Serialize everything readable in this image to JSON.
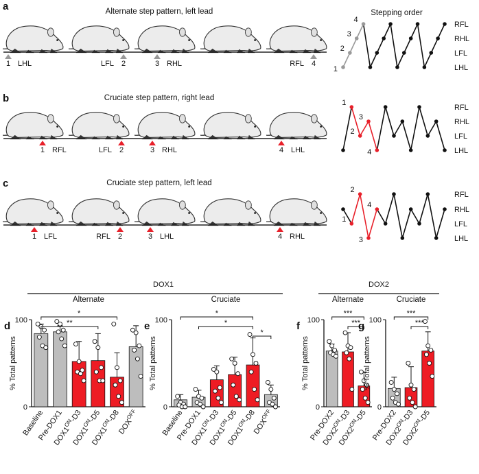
{
  "stepping_title": "Stepping order",
  "panels": [
    {
      "letter": "a",
      "title": "Alternate step pattern, left lead",
      "marker_color": "#999999",
      "markers": [
        {
          "number": "1",
          "limb": "LHL"
        },
        {
          "number": "2",
          "limb": "LFL"
        },
        {
          "number": "3",
          "limb": "RHL"
        },
        {
          "number": "4",
          "limb": "RFL"
        }
      ],
      "stepping": {
        "levels": [
          "RFL",
          "RHL",
          "LFL",
          "LHL"
        ],
        "sequence": [
          3,
          2,
          1,
          0,
          3,
          2,
          1,
          0,
          3,
          2,
          1,
          0,
          3,
          2,
          1,
          0
        ],
        "step_labels": [
          "1",
          "2",
          "3",
          "4",
          null,
          null,
          null,
          null,
          null,
          null,
          null,
          null,
          null,
          null,
          null,
          null
        ],
        "highlight_color": "#999999",
        "color": "#111111"
      }
    },
    {
      "letter": "b",
      "title": "Cruciate step pattern, right lead",
      "marker_color": "#e8202a",
      "markers": [
        {
          "number": "1",
          "limb": "RFL"
        },
        {
          "number": "2",
          "limb": "LFL"
        },
        {
          "number": "3",
          "limb": "RHL"
        },
        {
          "number": "4",
          "limb": "LHL"
        }
      ],
      "stepping": {
        "levels": [
          "RFL",
          "RHL",
          "LFL",
          "LHL"
        ],
        "sequence": [
          3,
          0,
          2,
          1,
          3,
          0,
          2,
          1,
          3,
          0,
          2,
          1,
          3
        ],
        "step_labels": [
          null,
          "1",
          "2",
          "3",
          "4",
          null,
          null,
          null,
          null,
          null,
          null,
          null,
          null
        ],
        "highlight_color": "#e8202a",
        "color": "#111111"
      }
    },
    {
      "letter": "c",
      "title": "Cruciate step pattern, left lead",
      "marker_color": "#e8202a",
      "markers": [
        {
          "number": "1",
          "limb": "LFL"
        },
        {
          "number": "2",
          "limb": "RFL"
        },
        {
          "number": "3",
          "limb": "LHL"
        },
        {
          "number": "4",
          "limb": "RHL"
        }
      ],
      "stepping": {
        "levels": [
          "RFL",
          "RHL",
          "LFL",
          "LHL"
        ],
        "sequence": [
          1,
          2,
          0,
          3,
          1,
          2,
          0,
          3,
          1,
          2,
          0,
          3,
          1
        ],
        "step_labels": [
          null,
          "1",
          "2",
          "3",
          "4",
          null,
          null,
          null,
          null,
          null,
          null,
          null,
          null
        ],
        "highlight_color": "#e8202a",
        "color": "#111111"
      }
    }
  ],
  "group_labels": [
    "DOX1",
    "DOX2"
  ],
  "chart_data": [
    {
      "letter": "d",
      "type": "bar",
      "title": "Alternate",
      "y_label": "% Total patterns",
      "categories": [
        [
          "Baseline"
        ],
        [
          "Pre-DOX1"
        ],
        [
          "DOX1",
          "ON",
          "-D3"
        ],
        [
          "DOX1",
          "ON",
          "-D5"
        ],
        [
          "DOX1",
          "ON",
          "-D8"
        ],
        [
          "DOX",
          "OFF"
        ]
      ],
      "values": [
        84,
        86,
        52,
        53,
        34,
        69
      ],
      "errors": [
        11,
        7,
        23,
        31,
        28,
        24
      ],
      "colors": [
        "#bdbdbd",
        "#bdbdbd",
        "#ee1c24",
        "#ee1c24",
        "#ee1c24",
        "#bdbdbd"
      ],
      "points": [
        [
          95,
          92,
          88,
          80,
          70,
          68
        ],
        [
          98,
          95,
          88,
          86,
          78,
          70
        ],
        [
          72,
          52,
          42,
          40,
          38,
          30
        ],
        [
          75,
          68,
          45,
          40,
          30,
          30
        ],
        [
          95,
          45,
          30,
          25,
          12,
          5
        ],
        [
          88,
          85,
          70,
          65,
          55,
          35
        ]
      ],
      "ylim": [
        0,
        100
      ],
      "yticks": [
        0,
        100
      ],
      "significance": [
        {
          "from": 0,
          "to": 4,
          "label": "*"
        },
        {
          "from": 0,
          "to": 3,
          "label": "**"
        }
      ]
    },
    {
      "letter": "e",
      "type": "bar",
      "title": "Cruciate",
      "y_label": "% Total patterns",
      "categories": [
        [
          "Baseline"
        ],
        [
          "Pre-DOX1"
        ],
        [
          "DOX1",
          "ON",
          "-D3"
        ],
        [
          "DOX1",
          "ON",
          "-D5"
        ],
        [
          "DOX1",
          "ON",
          "-D8"
        ],
        [
          "DOX",
          "OFF"
        ]
      ],
      "values": [
        8,
        11,
        31,
        37,
        48,
        14
      ],
      "errors": [
        6,
        8,
        16,
        20,
        31,
        11
      ],
      "colors": [
        "#bdbdbd",
        "#bdbdbd",
        "#ee1c24",
        "#ee1c24",
        "#ee1c24",
        "#bdbdbd"
      ],
      "points": [
        [
          12,
          5,
          3,
          2,
          0,
          0
        ],
        [
          20,
          12,
          10,
          5,
          3,
          0
        ],
        [
          43,
          40,
          22,
          18,
          10,
          5
        ],
        [
          55,
          50,
          38,
          25,
          12,
          8
        ],
        [
          83,
          60,
          50,
          40,
          20,
          8
        ],
        [
          28,
          20,
          10,
          5,
          3,
          0
        ]
      ],
      "ylim": [
        0,
        100
      ],
      "yticks": [
        0,
        100
      ],
      "significance": [
        {
          "from": 0,
          "to": 4,
          "label": "*"
        },
        {
          "from": 1,
          "to": 4,
          "label": "*"
        },
        {
          "from": 4,
          "to": 5,
          "label": "*"
        }
      ]
    },
    {
      "letter": "f",
      "type": "bar",
      "title": "Alternate",
      "y_label": "% Total patterns",
      "categories": [
        [
          "Pre-DOX2"
        ],
        [
          "DOX2",
          "ON",
          "-D3"
        ],
        [
          "DOX2",
          "ON",
          "-D5"
        ]
      ],
      "values": [
        64,
        63,
        24
      ],
      "errors": [
        8,
        22,
        16
      ],
      "colors": [
        "#bdbdbd",
        "#ee1c24",
        "#ee1c24"
      ],
      "points": [
        [
          75,
          70,
          65,
          62,
          60,
          58
        ],
        [
          85,
          70,
          68,
          62,
          55,
          20
        ],
        [
          40,
          30,
          25,
          20,
          10,
          5
        ]
      ],
      "ylim": [
        0,
        100
      ],
      "yticks": [
        0,
        100
      ],
      "significance": [
        {
          "from": 0,
          "to": 2,
          "label": "***"
        },
        {
          "from": 1,
          "to": 2,
          "label": "***"
        }
      ]
    },
    {
      "letter": "g",
      "type": "bar",
      "title": "Cruciate",
      "y_label": "% Total patterns",
      "categories": [
        [
          "Pre-DOX2"
        ],
        [
          "DOX2",
          "ON",
          "-D3"
        ],
        [
          "DOX2",
          "ON",
          "-D5"
        ]
      ],
      "values": [
        21,
        22,
        64
      ],
      "errors": [
        13,
        24,
        22
      ],
      "colors": [
        "#bdbdbd",
        "#ee1c24",
        "#ee1c24"
      ],
      "points": [
        [
          28,
          20,
          15,
          10,
          5,
          3
        ],
        [
          50,
          25,
          20,
          10,
          5,
          0
        ],
        [
          98,
          70,
          65,
          60,
          50,
          35
        ]
      ],
      "ylim": [
        0,
        100
      ],
      "yticks": [
        0,
        100
      ],
      "significance": [
        {
          "from": 0,
          "to": 2,
          "label": "***"
        },
        {
          "from": 1,
          "to": 2,
          "label": "***"
        }
      ]
    }
  ]
}
